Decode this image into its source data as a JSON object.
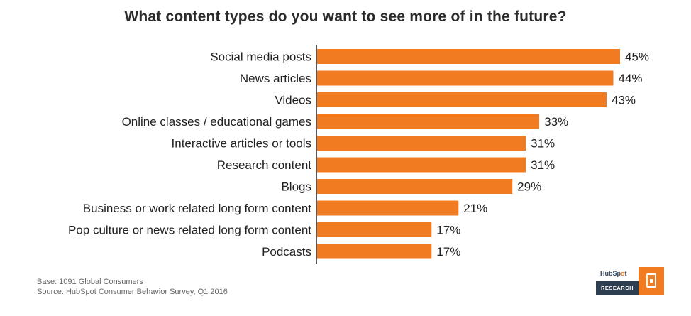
{
  "title": "What content types do you want to see more of in the future?",
  "footnotes": {
    "base": "Base: 1091 Global Consumers",
    "source": "Source: HubSpot Consumer Behavior Survey, Q1 2016"
  },
  "logo": {
    "brand_pre": "HubSp",
    "brand_o": "o",
    "brand_post": "t",
    "research_label": "RESEARCH"
  },
  "colors": {
    "bar": "#f07b20",
    "axis": "#222222",
    "brand_dark": "#2d3e50"
  },
  "chart_data": {
    "type": "bar",
    "orientation": "horizontal",
    "title": "What content types do you want to see more of in the future?",
    "categories": [
      "Social media posts",
      "News articles",
      "Videos",
      "Online classes / educational games",
      "Interactive articles or tools",
      "Research content",
      "Blogs",
      "Business or work related long form content",
      "Pop culture or news related long form content",
      "Podcasts"
    ],
    "values": [
      45,
      44,
      43,
      33,
      31,
      31,
      29,
      21,
      17,
      17
    ],
    "value_labels": [
      "45%",
      "44%",
      "43%",
      "33%",
      "31%",
      "31%",
      "29%",
      "21%",
      "17%",
      "17%"
    ],
    "xlim": [
      0,
      45
    ],
    "grid": false,
    "legend": "none"
  }
}
